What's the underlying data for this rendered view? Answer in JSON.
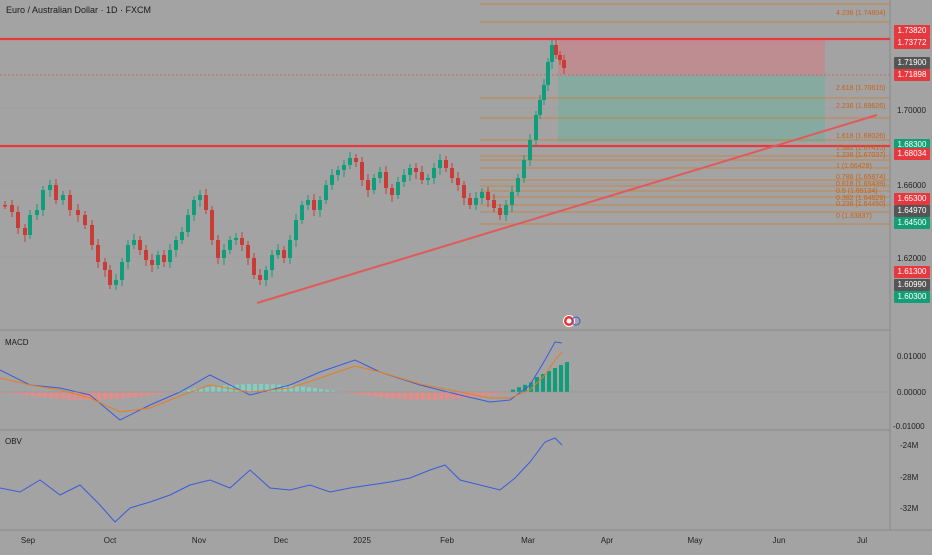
{
  "symbol_title": "Euro / Australian Dollar · 1D · FXCM",
  "months": [
    "Sep",
    "Oct",
    "Nov",
    "Dec",
    "2025",
    "Feb",
    "Mar",
    "Apr",
    "May",
    "Jun",
    "Jul"
  ],
  "price_axis": [
    "1.70000",
    "1.66000",
    "1.62000"
  ],
  "price_labels": [
    {
      "text": "1.73820",
      "color": "#e5393f"
    },
    {
      "text": "1.73772",
      "color": "#e5393f"
    },
    {
      "text": "1.71900",
      "color": "#555555"
    },
    {
      "text": "1.71898",
      "color": "#e5393f"
    },
    {
      "text": "1.68300",
      "color": "#149e75"
    },
    {
      "text": "1.68034",
      "color": "#e5393f"
    },
    {
      "text": "1.65300",
      "color": "#e5393f"
    },
    {
      "text": "1.64970",
      "color": "#555555"
    },
    {
      "text": "1.64500",
      "color": "#149e75"
    },
    {
      "text": "1.61300",
      "color": "#e5393f"
    },
    {
      "text": "1.60990",
      "color": "#555555"
    },
    {
      "text": "1.60300",
      "color": "#149e75"
    }
  ],
  "fib_levels": [
    "4.236 (1.74804)",
    "2.618 (1.70615)",
    "2.236 (1.69626)",
    "1.618 (1.68026)",
    "1.382 (1.67415)",
    "1.236 (1.67037)",
    "1 (1.66428)",
    "0.786 (1.65874)",
    "0.618 (1.65439)",
    "0.5 (1.65134)",
    "0.382 (1.64829)",
    "0.236 (1.64450)",
    "0 (1.63837)"
  ],
  "macd": {
    "label": "MACD",
    "axis": [
      "0.01000",
      "0.00000",
      "-0.01000"
    ]
  },
  "obv": {
    "label": "OBV",
    "axis": [
      "-24M",
      "-28M",
      "-32M"
    ]
  },
  "colors": {
    "up": "#0f9e7b",
    "down": "#c93b35",
    "line": "#e05a5a",
    "fib": "#d07a2c",
    "blue": "#3b5bdb",
    "orange": "#e67e22"
  }
}
